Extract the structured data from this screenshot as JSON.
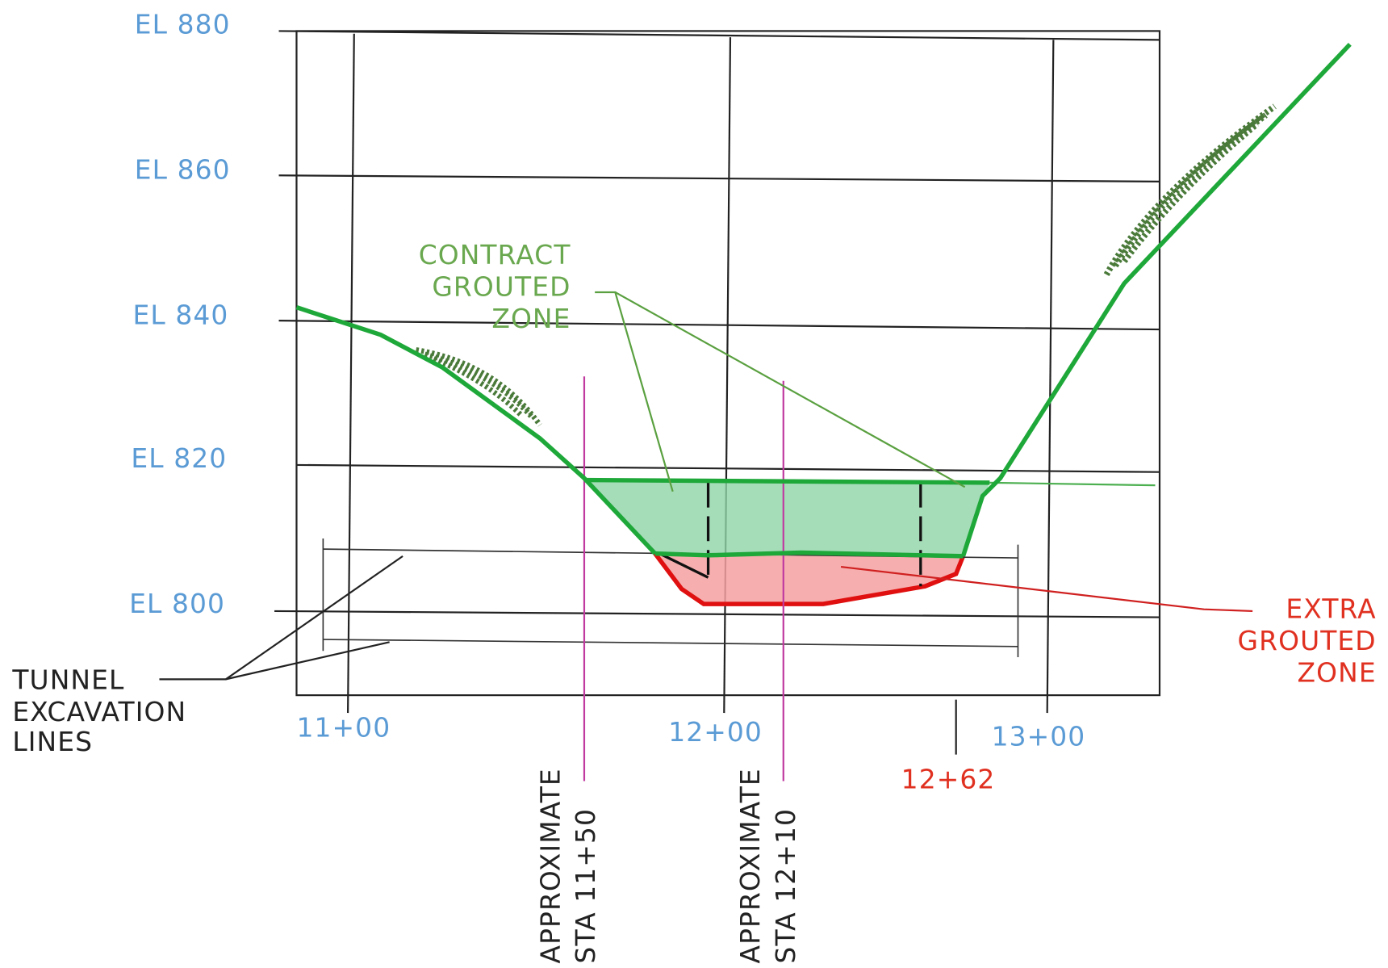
{
  "elevation_labels": [
    "EL 880",
    "EL 860",
    "EL 840",
    "EL 820",
    "EL 800"
  ],
  "station_labels": [
    "11+00",
    "12+00",
    "13+00"
  ],
  "contract_grouted_zone": [
    "CONTRACT",
    "GROUTED",
    "ZONE"
  ],
  "extra_grouted_zone": [
    "EXTRA",
    "GROUTED",
    "ZONE"
  ],
  "tunnel_excavation_lines": [
    "TUNNEL",
    "EXCAVATION",
    "LINES"
  ],
  "station_12_62": "12+62",
  "approximate_sta_11_50": [
    "APPROXIMATE",
    "STA 11+50"
  ],
  "approximate_sta_12_10": [
    "APPROXIMATE",
    "STA 12+10"
  ]
}
